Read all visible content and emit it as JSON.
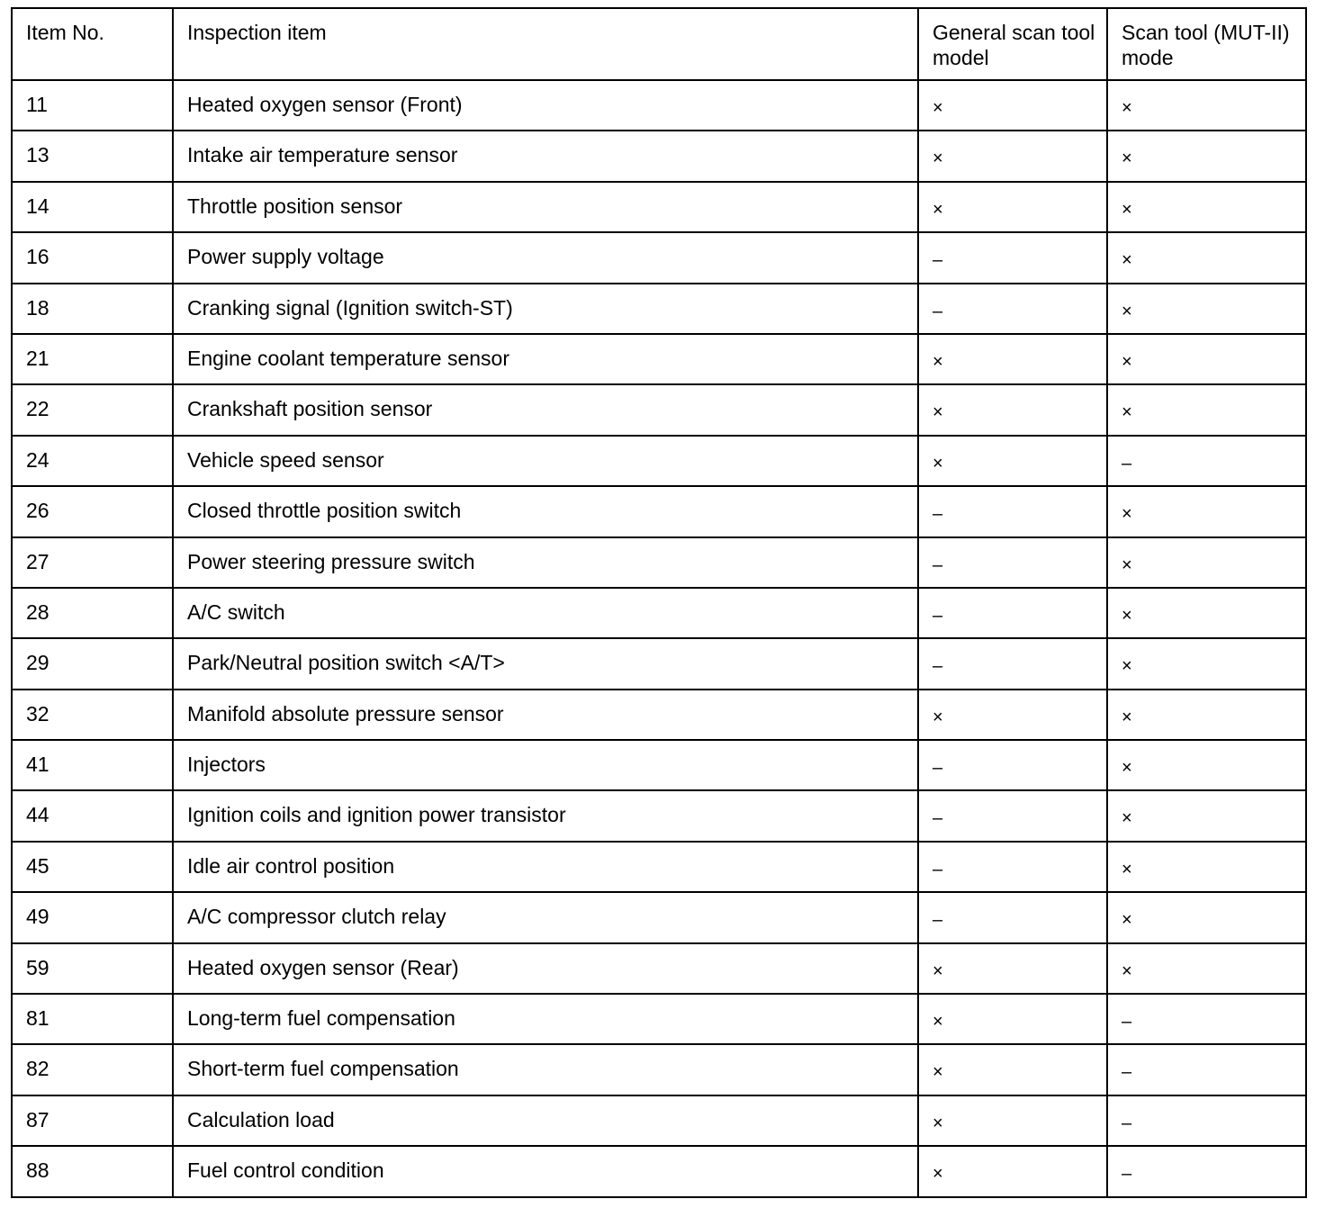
{
  "headers": [
    "Item No.",
    "Inspection item",
    "General scan tool model",
    "Scan tool (MUT-II) mode"
  ],
  "rows": [
    {
      "no": "11",
      "item": "Heated oxygen sensor (Front)",
      "general": "×",
      "mut": "×"
    },
    {
      "no": "13",
      "item": "Intake air temperature sensor",
      "general": "×",
      "mut": "×"
    },
    {
      "no": "14",
      "item": "Throttle position sensor",
      "general": "×",
      "mut": "×"
    },
    {
      "no": "16",
      "item": "Power supply voltage",
      "general": "–",
      "mut": "×"
    },
    {
      "no": "18",
      "item": "Cranking signal (Ignition switch-ST)",
      "general": "–",
      "mut": "×"
    },
    {
      "no": "21",
      "item": "Engine coolant temperature sensor",
      "general": "×",
      "mut": "×"
    },
    {
      "no": "22",
      "item": "Crankshaft position sensor",
      "general": "×",
      "mut": "×"
    },
    {
      "no": "24",
      "item": "Vehicle speed sensor",
      "general": "×",
      "mut": "–"
    },
    {
      "no": "26",
      "item": "Closed throttle position switch",
      "general": "–",
      "mut": "×"
    },
    {
      "no": "27",
      "item": "Power steering pressure switch",
      "general": "–",
      "mut": "×"
    },
    {
      "no": "28",
      "item": "A/C switch",
      "general": "–",
      "mut": "×"
    },
    {
      "no": "29",
      "item": "Park/Neutral position switch <A/T>",
      "general": "–",
      "mut": "×"
    },
    {
      "no": "32",
      "item": "Manifold absolute pressure sensor",
      "general": "×",
      "mut": "×"
    },
    {
      "no": "41",
      "item": "Injectors",
      "general": "–",
      "mut": "×"
    },
    {
      "no": "44",
      "item": "Ignition coils and ignition power transistor",
      "general": "–",
      "mut": "×"
    },
    {
      "no": "45",
      "item": "Idle air control position",
      "general": "–",
      "mut": "×"
    },
    {
      "no": "49",
      "item": "A/C compressor clutch relay",
      "general": "–",
      "mut": "×"
    },
    {
      "no": "59",
      "item": "Heated oxygen sensor (Rear)",
      "general": "×",
      "mut": "×"
    },
    {
      "no": "81",
      "item": "Long-term fuel compensation",
      "general": "×",
      "mut": "–"
    },
    {
      "no": "82",
      "item": "Short-term fuel compensation",
      "general": "×",
      "mut": "–"
    },
    {
      "no": "87",
      "item": "Calculation load",
      "general": "×",
      "mut": "–"
    },
    {
      "no": "88",
      "item": "Fuel control condition",
      "general": "×",
      "mut": "–"
    }
  ]
}
